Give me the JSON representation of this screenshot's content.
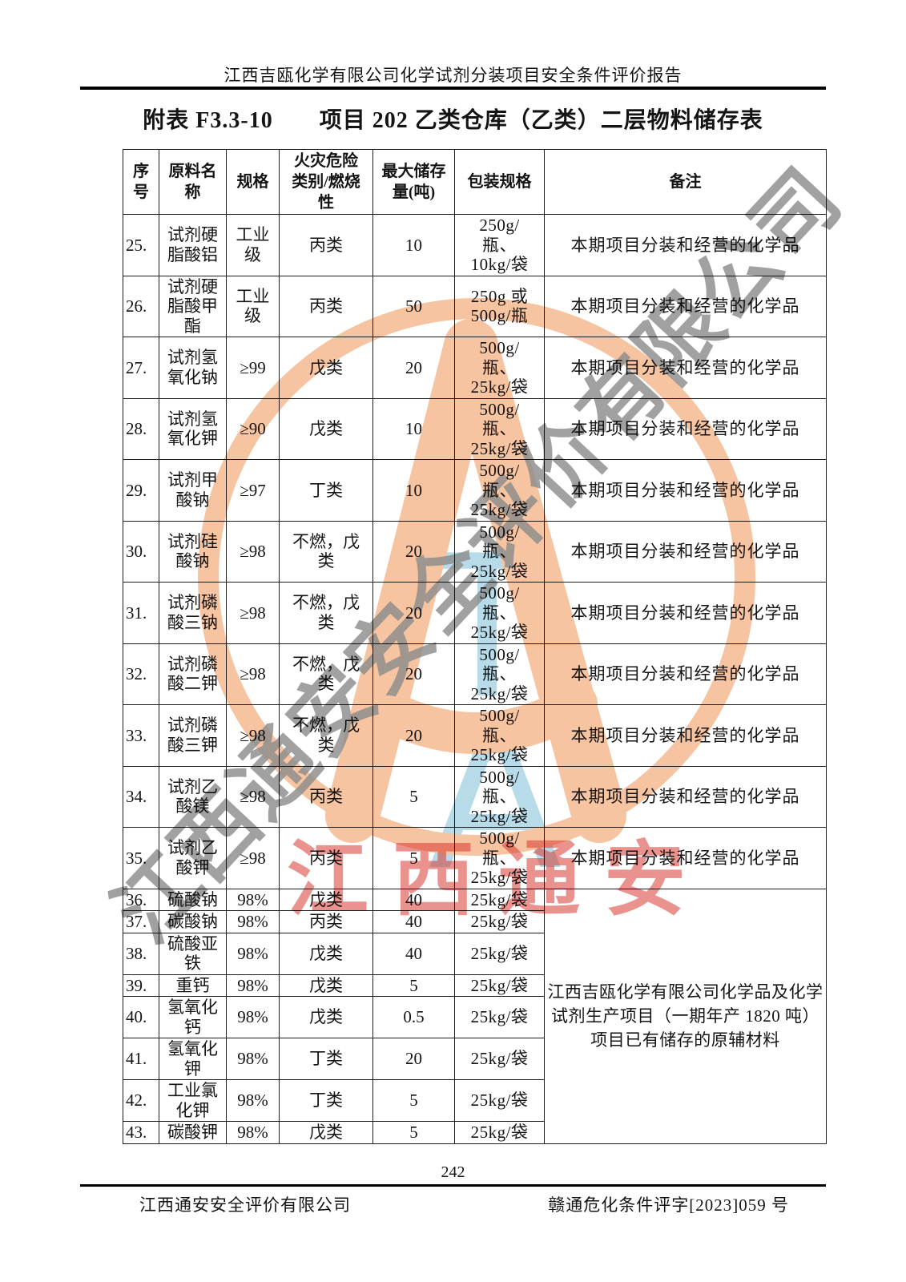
{
  "page": {
    "header": "江西吉瓯化学有限公司化学试剂分装项目安全条件评价报告",
    "title": "附表 F3.3-10　　项目 202 乙类仓库（乙类）二层物料储存表",
    "page_number": "242",
    "footer_left": "江西通安安全评价有限公司",
    "footer_right": "赣通危化条件评字[2023]059 号"
  },
  "table": {
    "headers": [
      "序\n号",
      "原料名\n称",
      "规格",
      "火灾危险\n类别/燃烧\n性",
      "最大储存\n量(吨)",
      "包装规格",
      "备注"
    ],
    "merged_note": "江西吉瓯化学有限公司化学品及化学\n试剂生产项目（一期年产 1820 吨）\n项目已有储存的原辅材料",
    "merged_note_start_index": 11,
    "rows": [
      {
        "no": "25.",
        "name": "试剂硬\n脂酸铝",
        "spec": "工业\n级",
        "fire": "丙类",
        "max": "10",
        "pack": "250g/\n瓶、\n10kg/袋",
        "note": "本期项目分装和经营的化学品"
      },
      {
        "no": "26.",
        "name": "试剂硬\n脂酸甲\n酯",
        "spec": "工业\n级",
        "fire": "丙类",
        "max": "50",
        "pack": "250g 或\n500g/瓶",
        "note": "本期项目分装和经营的化学品"
      },
      {
        "no": "27.",
        "name": "试剂氢\n氧化钠",
        "spec": "≥99",
        "fire": "戊类",
        "max": "20",
        "pack": "500g/\n瓶、\n25kg/袋",
        "note": "本期项目分装和经营的化学品"
      },
      {
        "no": "28.",
        "name": "试剂氢\n氧化钾",
        "spec": "≥90",
        "fire": "戊类",
        "max": "10",
        "pack": "500g/\n瓶、\n25kg/袋",
        "note": "本期项目分装和经营的化学品"
      },
      {
        "no": "29.",
        "name": "试剂甲\n酸钠",
        "spec": "≥97",
        "fire": "丁类",
        "max": "10",
        "pack": "500g/\n瓶、\n25kg/袋",
        "note": "本期项目分装和经营的化学品"
      },
      {
        "no": "30.",
        "name": "试剂硅\n酸钠",
        "spec": "≥98",
        "fire": "不燃，戊\n类",
        "max": "20",
        "pack": "500g/\n瓶、\n25kg/袋",
        "note": "本期项目分装和经营的化学品"
      },
      {
        "no": "31.",
        "name": "试剂磷\n酸三钠",
        "spec": "≥98",
        "fire": "不燃，戊\n类",
        "max": "20",
        "pack": "500g/\n瓶、\n25kg/袋",
        "note": "本期项目分装和经营的化学品"
      },
      {
        "no": "32.",
        "name": "试剂磷\n酸二钾",
        "spec": "≥98",
        "fire": "不燃，戊\n类",
        "max": "20",
        "pack": "500g/\n瓶、\n25kg/袋",
        "note": "本期项目分装和经营的化学品"
      },
      {
        "no": "33.",
        "name": "试剂磷\n酸三钾",
        "spec": "≥98",
        "fire": "不燃，戊\n类",
        "max": "20",
        "pack": "500g/\n瓶、\n25kg/袋",
        "note": "本期项目分装和经营的化学品"
      },
      {
        "no": "34.",
        "name": "试剂乙\n酸镁",
        "spec": "≥98",
        "fire": "丙类",
        "max": "5",
        "pack": "500g/\n瓶、\n25kg/袋",
        "note": "本期项目分装和经营的化学品"
      },
      {
        "no": "35.",
        "name": "试剂乙\n酸钾",
        "spec": "≥98",
        "fire": "丙类",
        "max": "5",
        "pack": "500g/\n瓶、\n25kg/袋",
        "note": "本期项目分装和经营的化学品"
      },
      {
        "no": "36.",
        "name": "硫酸钠",
        "spec": "98%",
        "fire": "戊类",
        "max": "40",
        "pack": "25kg/袋"
      },
      {
        "no": "37.",
        "name": "碳酸钠",
        "spec": "98%",
        "fire": "丙类",
        "max": "40",
        "pack": "25kg/袋"
      },
      {
        "no": "38.",
        "name": "硫酸亚\n铁",
        "spec": "98%",
        "fire": "戊类",
        "max": "40",
        "pack": "25kg/袋"
      },
      {
        "no": "39.",
        "name": "重钙",
        "spec": "98%",
        "fire": "戊类",
        "max": "5",
        "pack": "25kg/袋"
      },
      {
        "no": "40.",
        "name": "氢氧化\n钙",
        "spec": "98%",
        "fire": "戊类",
        "max": "0.5",
        "pack": "25kg/袋"
      },
      {
        "no": "41.",
        "name": "氢氧化\n钾",
        "spec": "98%",
        "fire": "丁类",
        "max": "20",
        "pack": "25kg/袋"
      },
      {
        "no": "42.",
        "name": "工业氯\n化钾",
        "spec": "98%",
        "fire": "丁类",
        "max": "5",
        "pack": "25kg/袋"
      },
      {
        "no": "43.",
        "name": "碳酸钾",
        "spec": "98%",
        "fire": "戊类",
        "max": "5",
        "pack": "25kg/袋"
      }
    ]
  },
  "watermark": {
    "diagonal_text": "江西通安安全评价有限公司",
    "red_text": "江西通安",
    "monogram": [
      "T",
      "A"
    ],
    "colors": {
      "logo_orange": "#f6c4a1",
      "monogram_blue": "#b7dbe9",
      "diagonal_gray": "#8d8d8d",
      "stamp_red": "#d93a31"
    }
  }
}
